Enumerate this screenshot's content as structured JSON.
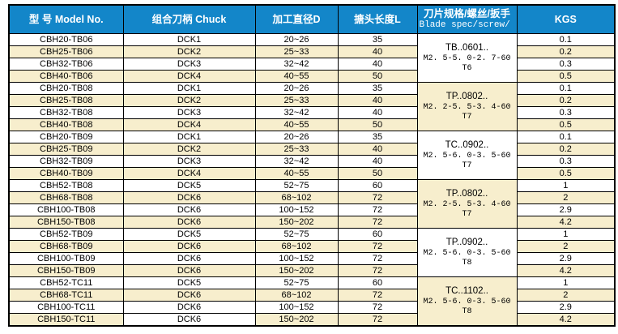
{
  "table": {
    "colors": {
      "header_bg": "#1386C9",
      "header_text": "#FFFFFF",
      "row_bg": "#FFFFFF",
      "row_alt_bg": "#F7EECD",
      "border": "#000000",
      "text": "#000000"
    },
    "columns": [
      {
        "label": "型 号 Model No."
      },
      {
        "label": "组合刀柄 Chuck"
      },
      {
        "label": "加工直径D"
      },
      {
        "label": "搪头长度L"
      },
      {
        "label": "刀片规格/螺丝/扳手",
        "sublabel": "Blade spec/screw/"
      },
      {
        "label": "KGS"
      }
    ],
    "groups": [
      {
        "blade": {
          "line1": "TB..0601..",
          "line2": "M2. 5-5. 0-2. 7-60",
          "line3": "T6"
        },
        "rows": [
          {
            "model": "CBH20-TB06",
            "chuck": "DCK1",
            "diameter": "20~26",
            "length": "35",
            "kgs": "0.1"
          },
          {
            "model": "CBH25-TB06",
            "chuck": "DCK2",
            "diameter": "25~33",
            "length": "40",
            "kgs": "0.2"
          },
          {
            "model": "CBH32-TB06",
            "chuck": "DCK3",
            "diameter": "32~42",
            "length": "40",
            "kgs": "0.3"
          },
          {
            "model": "CBH40-TB06",
            "chuck": "DCK4",
            "diameter": "40~55",
            "length": "50",
            "kgs": "0.5"
          }
        ]
      },
      {
        "blade": {
          "line1": "TP..0802..",
          "line2": "M2. 2-5. 5-3. 4-60",
          "line3": "T7"
        },
        "rows": [
          {
            "model": "CBH20-TB08",
            "chuck": "DCK1",
            "diameter": "20~26",
            "length": "35",
            "kgs": "0.1"
          },
          {
            "model": "CBH25-TB08",
            "chuck": "DCK2",
            "diameter": "25~33",
            "length": "40",
            "kgs": "0.2"
          },
          {
            "model": "CBH32-TB08",
            "chuck": "DCK3",
            "diameter": "32~42",
            "length": "40",
            "kgs": "0.3"
          },
          {
            "model": "CBH40-TB08",
            "chuck": "DCK4",
            "diameter": "40~55",
            "length": "50",
            "kgs": "0.5"
          }
        ]
      },
      {
        "blade": {
          "line1": "TC..0902..",
          "line2": "M2. 5-6. 0-3. 5-60",
          "line3": "T7"
        },
        "rows": [
          {
            "model": "CBH20-TB09",
            "chuck": "DCK1",
            "diameter": "20~26",
            "length": "35",
            "kgs": "0.1"
          },
          {
            "model": "CBH25-TB09",
            "chuck": "DCK2",
            "diameter": "25~33",
            "length": "40",
            "kgs": "0.2"
          },
          {
            "model": "CBH32-TB09",
            "chuck": "DCK3",
            "diameter": "32~42",
            "length": "40",
            "kgs": "0.3"
          },
          {
            "model": "CBH40-TB09",
            "chuck": "DCK4",
            "diameter": "40~55",
            "length": "50",
            "kgs": "0.5"
          }
        ]
      },
      {
        "blade": {
          "line1": "TP..0802..",
          "line2": "M2. 2-5. 5-3. 4-60",
          "line3": "T7"
        },
        "rows": [
          {
            "model": "CBH52-TB08",
            "chuck": "DCK5",
            "diameter": "52~75",
            "length": "60",
            "kgs": "1"
          },
          {
            "model": "CBH68-TB08",
            "chuck": "DCK6",
            "diameter": "68~102",
            "length": "72",
            "kgs": "2"
          },
          {
            "model": "CBH100-TB08",
            "chuck": "DCK6",
            "diameter": "100~152",
            "length": "72",
            "kgs": "2.9"
          },
          {
            "model": "CBH150-TB08",
            "chuck": "DCK6",
            "diameter": "150~202",
            "length": "72",
            "kgs": "4.2"
          }
        ]
      },
      {
        "blade": {
          "line1": "TP..0902..",
          "line2": "M2. 5-6. 0-3. 5-60",
          "line3": "T8"
        },
        "rows": [
          {
            "model": "CBH52-TB09",
            "chuck": "DCK5",
            "diameter": "52~75",
            "length": "60",
            "kgs": "1"
          },
          {
            "model": "CBH68-TB09",
            "chuck": "DCK6",
            "diameter": "68~102",
            "length": "72",
            "kgs": "2"
          },
          {
            "model": "CBH100-TB09",
            "chuck": "DCK6",
            "diameter": "100~152",
            "length": "72",
            "kgs": "2.9"
          },
          {
            "model": "CBH150-TB09",
            "chuck": "DCK6",
            "diameter": "150~202",
            "length": "72",
            "kgs": "4.2"
          }
        ]
      },
      {
        "blade": {
          "line1": "TC..1102..",
          "line2": "M2. 5-6. 0-3. 5-60",
          "line3": "T8"
        },
        "rows": [
          {
            "model": "CBH52-TC11",
            "chuck": "DCK5",
            "diameter": "52~75",
            "length": "60",
            "kgs": "1"
          },
          {
            "model": "CBH68-TC11",
            "chuck": "DCK6",
            "diameter": "68~102",
            "length": "72",
            "kgs": "2"
          },
          {
            "model": "CBH100-TC11",
            "chuck": "DCK6",
            "diameter": "100~152",
            "length": "72",
            "kgs": "2.9"
          },
          {
            "model": "CBH150-TC11",
            "chuck": "DCK6",
            "diameter": "150~202",
            "length": "72",
            "kgs": "4.2"
          }
        ]
      }
    ]
  }
}
